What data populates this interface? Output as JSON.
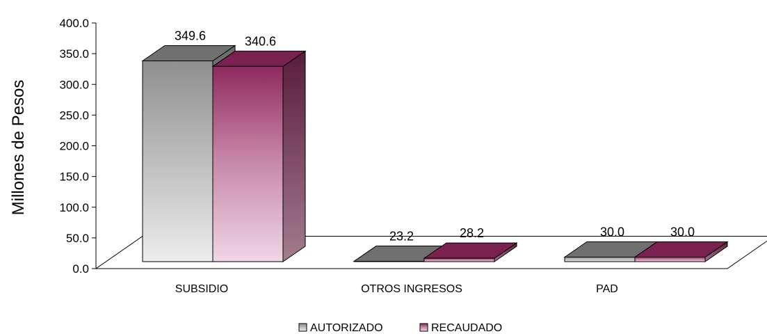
{
  "chart_data": {
    "type": "bar",
    "subtype": "3d-clustered-column",
    "categories": [
      "SUBSIDIO",
      "OTROS INGRESOS",
      "PAD"
    ],
    "series": [
      {
        "name": "AUTORIZADO",
        "values": [
          349.6,
          23.2,
          30.0
        ],
        "color": "#9a9a9a"
      },
      {
        "name": "RECAUDADO",
        "values": [
          340.6,
          28.2,
          30.0
        ],
        "color": "#8f2a5f"
      }
    ],
    "data_labels": [
      [
        "349.6",
        "23.2",
        "30.0"
      ],
      [
        "340.6",
        "28.2",
        "30.0"
      ]
    ],
    "ylabel": "Millones de Pesos",
    "xlabel": "",
    "title": "",
    "ylim": [
      0,
      400
    ],
    "yticks": [
      0,
      50,
      100,
      150,
      200,
      250,
      300,
      350,
      400
    ],
    "ytick_labels": [
      "0.0",
      "50.0",
      "100.0",
      "150.0",
      "200.0",
      "250.0",
      "300.0",
      "350.0",
      "400.0"
    ],
    "grid": false,
    "legend_position": "bottom"
  }
}
